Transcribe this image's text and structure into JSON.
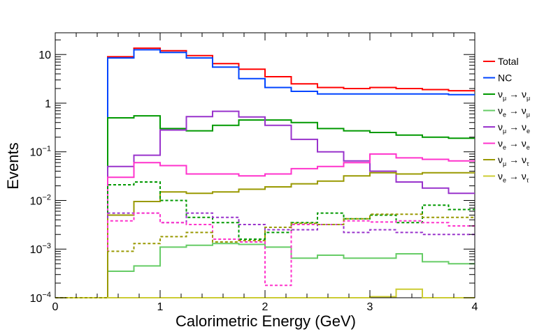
{
  "chart_data": {
    "type": "histogram",
    "title": "",
    "xlabel": "Calorimetric Energy (GeV)",
    "ylabel": "Events",
    "xlim": [
      0,
      4
    ],
    "ylim": [
      0.0001,
      28
    ],
    "yscale": "log",
    "x_ticks": [
      "0",
      "1",
      "2",
      "3",
      "4"
    ],
    "y_ticks": [
      {
        "value": 10,
        "label": "10"
      },
      {
        "value": 1,
        "label": "1"
      },
      {
        "value": 0.1,
        "label": "10",
        "exp": "−1"
      },
      {
        "value": 0.01,
        "label": "10",
        "exp": "−2"
      },
      {
        "value": 0.001,
        "label": "10",
        "exp": "−3"
      },
      {
        "value": 0.0001,
        "label": "10",
        "exp": "−4"
      }
    ],
    "bin_edges": [
      0,
      0.25,
      0.5,
      0.75,
      1.0,
      1.25,
      1.5,
      1.75,
      2.0,
      2.25,
      2.5,
      2.75,
      3.0,
      3.25,
      3.5,
      3.75,
      4.0
    ],
    "floor_value": 0.0001,
    "legend_position": "right",
    "series": [
      {
        "name": "Total",
        "legend": "Total",
        "color": "#ff0000",
        "dashed": false,
        "values": [
          0.0001,
          0.0001,
          9.0,
          13.5,
          12.0,
          9.5,
          6.5,
          5.0,
          3.5,
          2.5,
          2.1,
          2.0,
          2.1,
          2.0,
          1.9,
          1.8
        ]
      },
      {
        "name": "NC",
        "legend": "NC",
        "color": "#0044ff",
        "dashed": false,
        "values": [
          0.0001,
          0.0001,
          8.5,
          12.5,
          11.0,
          8.5,
          5.5,
          3.2,
          2.1,
          1.75,
          1.55,
          1.55,
          1.55,
          1.55,
          1.55,
          1.5
        ]
      },
      {
        "name": "numu-numu",
        "legend": {
          "a": "ν",
          "as": "μ",
          "b": "ν",
          "bs": "μ"
        },
        "color": "#009900",
        "dashed": false,
        "values": [
          0.0001,
          0.0001,
          0.5,
          0.55,
          0.3,
          0.27,
          0.35,
          0.45,
          0.45,
          0.4,
          0.3,
          0.27,
          0.25,
          0.22,
          0.2,
          0.19
        ]
      },
      {
        "name": "nue-numu",
        "legend": {
          "a": "ν",
          "as": "e",
          "b": "ν",
          "bs": "μ"
        },
        "color": "#66cc66",
        "dashed": false,
        "values": [
          0.0001,
          0.0001,
          0.00035,
          0.00045,
          0.0011,
          0.0012,
          0.0013,
          0.00125,
          0.0011,
          0.00065,
          0.00075,
          0.00065,
          0.00065,
          0.0008,
          0.00055,
          0.0005
        ]
      },
      {
        "name": "numu-nue",
        "legend": {
          "a": "ν",
          "as": "μ",
          "b": "ν",
          "bs": "e"
        },
        "color": "#9933cc",
        "dashed": false,
        "values": [
          0.0001,
          0.0001,
          0.05,
          0.085,
          0.28,
          0.53,
          0.68,
          0.52,
          0.35,
          0.18,
          0.1,
          0.065,
          0.04,
          0.024,
          0.018,
          0.014
        ]
      },
      {
        "name": "nue-nue",
        "legend": {
          "a": "ν",
          "as": "e",
          "b": "ν",
          "bs": "e"
        },
        "color": "#ff33cc",
        "dashed": false,
        "values": [
          0.0001,
          0.0001,
          0.03,
          0.06,
          0.052,
          0.035,
          0.035,
          0.032,
          0.035,
          0.045,
          0.05,
          0.06,
          0.09,
          0.075,
          0.07,
          0.065
        ]
      },
      {
        "name": "numu-nutau",
        "legend": {
          "a": "ν",
          "as": "μ",
          "b": "ν",
          "bs": "τ"
        },
        "color": "#999900",
        "dashed": false,
        "values": [
          0.0001,
          0.0001,
          0.005,
          0.0095,
          0.015,
          0.014,
          0.015,
          0.017,
          0.019,
          0.022,
          0.025,
          0.032,
          0.037,
          0.035,
          0.037,
          0.037
        ]
      },
      {
        "name": "nue-nutau",
        "legend": {
          "a": "ν",
          "as": "e",
          "b": "ν",
          "bs": "τ"
        },
        "color": "#cccc33",
        "dashed": false,
        "values": [
          0.0001,
          0.0001,
          0.0001,
          0.0001,
          0.0001,
          0.0001,
          0.0001,
          0.0001,
          0.0001,
          0.0001,
          0.0001,
          0.0001,
          0.000105,
          0.00015,
          0.0001,
          0.0001
        ]
      },
      {
        "name": "numu-numu (dashed)",
        "color": "#009900",
        "dashed": true,
        "values": [
          0.0001,
          0.0001,
          0.021,
          0.024,
          0.01,
          0.0045,
          0.0035,
          0.0016,
          0.0022,
          0.0035,
          0.0055,
          0.0042,
          0.005,
          0.0035,
          0.008,
          0.0065
        ]
      },
      {
        "name": "numu-nue (dashed)",
        "color": "#9933cc",
        "dashed": true,
        "values": [
          0.0001,
          0.0001,
          0.0055,
          0.0055,
          0.0035,
          0.0055,
          0.0045,
          0.0032,
          0.0025,
          0.0025,
          0.0032,
          0.0022,
          0.0025,
          0.0022,
          0.002,
          0.002
        ]
      },
      {
        "name": "nue-nue (dashed)",
        "color": "#ff33cc",
        "dashed": true,
        "values": [
          0.0001,
          0.0001,
          0.0038,
          0.0055,
          0.0035,
          0.0032,
          0.0016,
          0.0014,
          0.00018,
          0.0032,
          0.0032,
          0.0038,
          0.0036,
          0.0038,
          0.0035,
          0.003
        ]
      },
      {
        "name": "numu-nutau (dashed)",
        "color": "#999900",
        "dashed": true,
        "values": [
          0.0001,
          0.0001,
          0.0009,
          0.0013,
          0.0018,
          0.0022,
          0.0014,
          0.0015,
          0.0028,
          0.0034,
          0.0032,
          0.0042,
          0.0052,
          0.0052,
          0.0045,
          0.0045
        ]
      }
    ]
  }
}
